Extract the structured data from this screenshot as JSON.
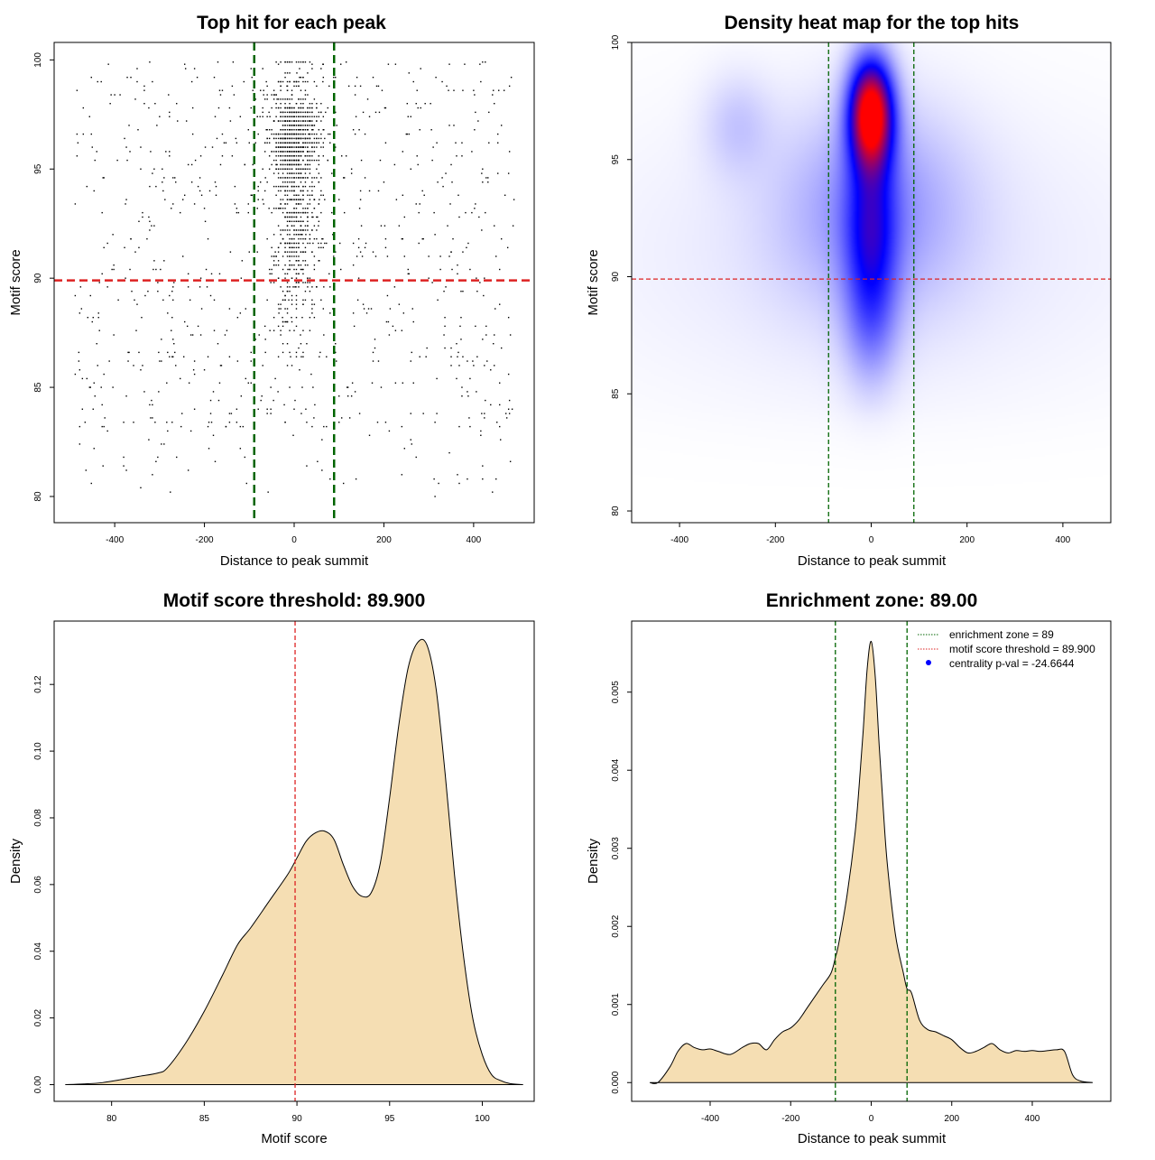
{
  "chart_data": [
    {
      "type": "scatter",
      "title": "Top hit for each peak",
      "xlabel": "Distance to peak summit",
      "ylabel": "Motif score",
      "xlim": [
        -535,
        535
      ],
      "ylim": [
        78.8,
        100.8
      ],
      "xticks": [
        "-400",
        "-200",
        "0",
        "200",
        "400"
      ],
      "yticks": [
        "80",
        "85",
        "90",
        "95",
        "100"
      ],
      "points": {
        "count": 2200,
        "distribution": "summit-centered cluster (|x| < 60) with high scores 85-99, plus uniform background across -500..500",
        "seed": 7
      },
      "vlines": [
        -89,
        89
      ],
      "hline": 89.9,
      "vline_color": "#006400",
      "hline_color": "#dd2222"
    },
    {
      "type": "heatmap",
      "title": "Density heat map for the top hits",
      "xlabel": "Distance to peak summit",
      "ylabel": "Motif score",
      "xlim": [
        -500,
        500
      ],
      "ylim": [
        79.5,
        100
      ],
      "xticks": [
        "-400",
        "-200",
        "0",
        "200",
        "400"
      ],
      "yticks": [
        "80",
        "85",
        "90",
        "95",
        "100"
      ],
      "density": [
        {
          "x": 0,
          "y": 97.0,
          "sx": 32,
          "sy": 1.6,
          "w": 1.0
        },
        {
          "x": 0,
          "y": 92.0,
          "sx": 38,
          "sy": 2.5,
          "w": 0.35
        },
        {
          "x": 0,
          "y": 88.0,
          "sx": 40,
          "sy": 2.0,
          "w": 0.18
        },
        {
          "x": -50,
          "y": 93.0,
          "sx": 120,
          "sy": 3.0,
          "w": 0.1
        },
        {
          "x": 60,
          "y": 93.0,
          "sx": 120,
          "sy": 3.0,
          "w": 0.1
        },
        {
          "x": -280,
          "y": 96.5,
          "sx": 50,
          "sy": 1.5,
          "w": 0.09
        },
        {
          "x": 0,
          "y": 91.0,
          "sx": 420,
          "sy": 4.5,
          "w": 0.05
        }
      ],
      "vlines": [
        -89,
        89
      ],
      "hline": 89.9,
      "low_color": "#ffffff",
      "mid_color": "#0000ff",
      "high_color": "#ff0000"
    },
    {
      "type": "area",
      "title": "Motif score threshold: 89.900",
      "xlabel": "Motif score",
      "ylabel": "Density",
      "xlim": [
        76.9,
        102.8
      ],
      "ylim": [
        -0.005,
        0.139
      ],
      "xticks": [
        "80",
        "85",
        "90",
        "95",
        "100"
      ],
      "yticks": [
        "0.00",
        "0.02",
        "0.04",
        "0.06",
        "0.08",
        "0.10",
        "0.12"
      ],
      "x": [
        77.5,
        78.5,
        79.5,
        80.5,
        81.5,
        82.5,
        83.0,
        84.0,
        85.0,
        86.0,
        86.8,
        87.5,
        88.5,
        89.5,
        90.0,
        90.5,
        91.0,
        91.5,
        92.0,
        92.5,
        93.0,
        93.5,
        94.0,
        94.5,
        95.0,
        95.5,
        96.0,
        96.5,
        97.0,
        97.5,
        98.0,
        98.5,
        99.0,
        99.5,
        100.0,
        100.5,
        101.0,
        101.5,
        102.2
      ],
      "y": [
        0.0,
        0.0002,
        0.0006,
        0.0015,
        0.0025,
        0.0035,
        0.005,
        0.0125,
        0.022,
        0.033,
        0.042,
        0.047,
        0.055,
        0.063,
        0.068,
        0.073,
        0.0755,
        0.076,
        0.0735,
        0.066,
        0.0595,
        0.0565,
        0.0575,
        0.0665,
        0.086,
        0.108,
        0.125,
        0.1325,
        0.132,
        0.119,
        0.093,
        0.063,
        0.038,
        0.0195,
        0.009,
        0.003,
        0.0012,
        0.0003,
        0.0
      ],
      "fill_color": "#f5deb3",
      "vline": 89.9,
      "vline_color": "#dd2222"
    },
    {
      "type": "area",
      "title": "Enrichment zone: 89.00",
      "xlabel": "Distance to peak summit",
      "ylabel": "Density",
      "xlim": [
        -595,
        595
      ],
      "ylim": [
        -0.00024,
        0.00591
      ],
      "xticks": [
        "-400",
        "-200",
        "0",
        "200",
        "400"
      ],
      "yticks": [
        "0.000",
        "0.001",
        "0.002",
        "0.003",
        "0.004",
        "0.005"
      ],
      "x": [
        -550,
        -530,
        -500,
        -480,
        -460,
        -440,
        -420,
        -400,
        -380,
        -350,
        -320,
        -300,
        -280,
        -260,
        -240,
        -220,
        -200,
        -180,
        -160,
        -140,
        -120,
        -100,
        -89,
        -80,
        -60,
        -40,
        -30,
        -20,
        -10,
        0,
        10,
        20,
        30,
        40,
        60,
        80,
        89,
        100,
        120,
        140,
        160,
        180,
        200,
        220,
        240,
        260,
        280,
        300,
        320,
        340,
        360,
        380,
        400,
        420,
        440,
        460,
        480,
        500,
        520,
        550
      ],
      "y": [
        0.0,
        0.0,
        0.0002,
        0.0004,
        0.0005,
        0.00045,
        0.00042,
        0.00043,
        0.0004,
        0.00036,
        0.00045,
        0.0005,
        0.0005,
        0.00042,
        0.00055,
        0.00065,
        0.0007,
        0.0008,
        0.00095,
        0.0011,
        0.00125,
        0.0014,
        0.0016,
        0.0018,
        0.0024,
        0.0032,
        0.0038,
        0.0045,
        0.0053,
        0.00565,
        0.0052,
        0.0043,
        0.0035,
        0.0028,
        0.0019,
        0.0014,
        0.0012,
        0.00115,
        0.0008,
        0.00068,
        0.00065,
        0.0006,
        0.00055,
        0.00045,
        0.00038,
        0.0004,
        0.00045,
        0.0005,
        0.00042,
        0.00038,
        0.00041,
        0.0004,
        0.00041,
        0.0004,
        0.00041,
        0.00042,
        0.0004,
        0.0001,
        2e-05,
        0.0
      ],
      "fill_color": "#f5deb3",
      "vlines": [
        -89,
        89
      ],
      "vline_color": "#006400",
      "legend": [
        {
          "label": "enrichment zone = 89",
          "color": "#006400",
          "style": "dotted"
        },
        {
          "label": "motif score threshold = 89.900",
          "color": "#dd2222",
          "style": "dotted"
        },
        {
          "label": "centrality p-val = -24.6644",
          "color": "#0000ff",
          "style": "dot"
        }
      ],
      "legend_position": "top-right"
    }
  ]
}
